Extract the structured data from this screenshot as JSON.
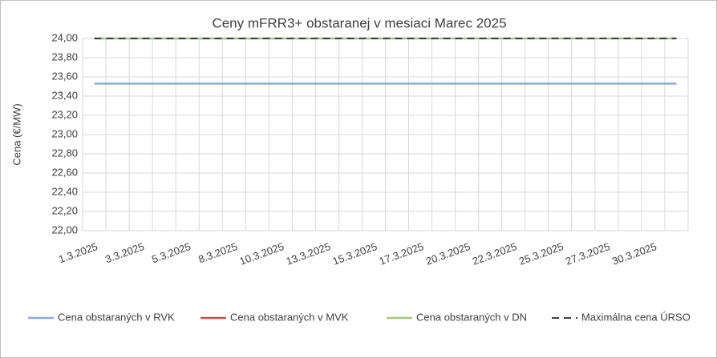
{
  "chart_data": {
    "type": "line",
    "title": "Ceny mFRR3+ obstaranej v mesiaci Marec 2025",
    "y_label": "Cena (€/MW)",
    "categories": [
      "1.3.2025",
      null,
      "3.3.2025",
      null,
      "5.3.2025",
      null,
      "8.3.2025",
      null,
      "10.3.2025",
      null,
      "13.3.2025",
      null,
      "15.3.2025",
      null,
      "17.3.2025",
      null,
      "20.3.2025",
      null,
      "22.3.2025",
      null,
      "25.3.2025",
      null,
      "27.3.2025",
      null,
      "30.3.2025",
      null
    ],
    "series": [
      {
        "name": "Cena obstaraných v RVK",
        "color": "#8faadc",
        "values": [
          23.53,
          23.53,
          23.53,
          23.53,
          23.53,
          23.53,
          23.53,
          23.53,
          23.53,
          23.53,
          23.53,
          23.53,
          23.53,
          23.53,
          23.53,
          23.53,
          23.53,
          23.53,
          23.53,
          23.53,
          23.53,
          23.53,
          23.53,
          23.53,
          23.53,
          23.53
        ]
      },
      {
        "name": "Cena obstaraných v MVK",
        "color": "#c0504d",
        "values": [
          null,
          null,
          null,
          null,
          null,
          null,
          null,
          null,
          null,
          null,
          null,
          null,
          null,
          null,
          null,
          null,
          null,
          null,
          null,
          null,
          null,
          null,
          null,
          null,
          null,
          null
        ]
      },
      {
        "name": "Cena obstaraných v DN",
        "color": "#a9c47f",
        "values": [
          24,
          24,
          24,
          24,
          24,
          24,
          24,
          24,
          24,
          24,
          24,
          24,
          24,
          24,
          24,
          24,
          24,
          24,
          24,
          24,
          24,
          24,
          24,
          24,
          24,
          24
        ]
      },
      {
        "name": "Maximálna cena ÚRSO",
        "color": "#404040",
        "dashed": true,
        "values": [
          24,
          24,
          24,
          24,
          24,
          24,
          24,
          24,
          24,
          24,
          24,
          24,
          24,
          24,
          24,
          24,
          24,
          24,
          24,
          24,
          24,
          24,
          24,
          24,
          24,
          24
        ]
      }
    ],
    "ylim": [
      22,
      24
    ],
    "yticks": [
      {
        "value": 22,
        "label": "22,00"
      },
      {
        "value": 22.2,
        "label": "22,20"
      },
      {
        "value": 22.4,
        "label": "22,40"
      },
      {
        "value": 22.6,
        "label": "22,60"
      },
      {
        "value": 22.8,
        "label": "22,80"
      },
      {
        "value": 23,
        "label": "23,00"
      },
      {
        "value": 23.2,
        "label": "23,20"
      },
      {
        "value": 23.4,
        "label": "23,40"
      },
      {
        "value": 23.6,
        "label": "23,60"
      },
      {
        "value": 23.8,
        "label": "23,80"
      },
      {
        "value": 24,
        "label": "24,00"
      }
    ],
    "grid": true,
    "legend": "bottom"
  }
}
